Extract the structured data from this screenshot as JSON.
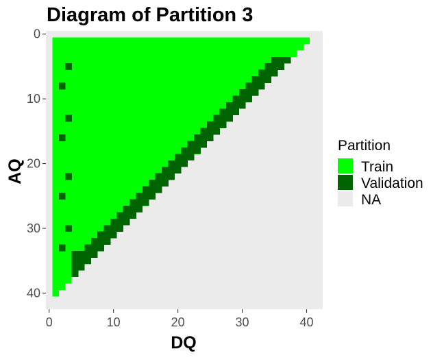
{
  "chart_data": {
    "type": "heatmap",
    "title": "Diagram of Partition 3",
    "xlabel": "DQ",
    "ylabel": "AQ",
    "xlim": [
      -0.5,
      42.5
    ],
    "ylim": [
      -0.5,
      42.5
    ],
    "y_reversed": true,
    "x_ticks": [
      0,
      10,
      20,
      30,
      40
    ],
    "y_ticks": [
      0,
      10,
      20,
      30,
      40
    ],
    "grid": false,
    "legend": {
      "title": "Partition",
      "placement": "right",
      "entries": [
        {
          "label": "Train",
          "color": "#00ff00"
        },
        {
          "label": "Validation",
          "color": "#006400"
        },
        {
          "label": "NA",
          "color": "#ebebeb"
        }
      ]
    },
    "panel_background": "#ebebeb",
    "categories": [
      "Train",
      "Validation"
    ],
    "train_region": "cells with DQ >= 1 and AQ >= 1 and DQ + AQ <= 41, excluding validation cells",
    "train_row_extent": [
      [
        1,
        40
      ],
      [
        1,
        39
      ],
      [
        1,
        38
      ],
      [
        1,
        37
      ],
      [
        1,
        36
      ],
      [
        1,
        35
      ],
      [
        1,
        34
      ],
      [
        1,
        33
      ],
      [
        1,
        32
      ],
      [
        1,
        31
      ],
      [
        1,
        30
      ],
      [
        1,
        29
      ],
      [
        1,
        28
      ],
      [
        1,
        27
      ],
      [
        1,
        26
      ],
      [
        1,
        25
      ],
      [
        1,
        24
      ],
      [
        1,
        23
      ],
      [
        1,
        22
      ],
      [
        1,
        21
      ],
      [
        1,
        20
      ],
      [
        1,
        19
      ],
      [
        1,
        18
      ],
      [
        1,
        17
      ],
      [
        1,
        16
      ],
      [
        1,
        15
      ],
      [
        1,
        14
      ],
      [
        1,
        13
      ],
      [
        1,
        12
      ],
      [
        1,
        11
      ],
      [
        1,
        10
      ],
      [
        1,
        9
      ],
      [
        1,
        8
      ],
      [
        1,
        7
      ],
      [
        1,
        6
      ],
      [
        1,
        5
      ],
      [
        1,
        4
      ],
      [
        1,
        3
      ],
      [
        1,
        2
      ],
      [
        1,
        1
      ]
    ],
    "validation_diagonal_band": [
      {
        "AQ": 4,
        "DQ": [
          35,
          37
        ]
      },
      {
        "AQ": 5,
        "DQ": [
          34,
          36
        ]
      },
      {
        "AQ": 6,
        "DQ": [
          33,
          35
        ]
      },
      {
        "AQ": 7,
        "DQ": [
          32,
          34
        ]
      },
      {
        "AQ": 8,
        "DQ": [
          31,
          33
        ]
      },
      {
        "AQ": 9,
        "DQ": [
          30,
          32
        ]
      },
      {
        "AQ": 10,
        "DQ": [
          29,
          31
        ]
      },
      {
        "AQ": 11,
        "DQ": [
          28,
          30
        ]
      },
      {
        "AQ": 12,
        "DQ": [
          27,
          29
        ]
      },
      {
        "AQ": 13,
        "DQ": [
          26,
          28
        ]
      },
      {
        "AQ": 14,
        "DQ": [
          25,
          27
        ]
      },
      {
        "AQ": 15,
        "DQ": [
          24,
          26
        ]
      },
      {
        "AQ": 16,
        "DQ": [
          23,
          25
        ]
      },
      {
        "AQ": 17,
        "DQ": [
          22,
          24
        ]
      },
      {
        "AQ": 18,
        "DQ": [
          21,
          23
        ]
      },
      {
        "AQ": 19,
        "DQ": [
          20,
          22
        ]
      },
      {
        "AQ": 20,
        "DQ": [
          19,
          21
        ]
      },
      {
        "AQ": 21,
        "DQ": [
          18,
          20
        ]
      },
      {
        "AQ": 22,
        "DQ": [
          17,
          19
        ]
      },
      {
        "AQ": 23,
        "DQ": [
          16,
          18
        ]
      },
      {
        "AQ": 24,
        "DQ": [
          15,
          17
        ]
      },
      {
        "AQ": 25,
        "DQ": [
          14,
          16
        ]
      },
      {
        "AQ": 26,
        "DQ": [
          13,
          15
        ]
      },
      {
        "AQ": 27,
        "DQ": [
          12,
          14
        ]
      },
      {
        "AQ": 28,
        "DQ": [
          11,
          13
        ]
      },
      {
        "AQ": 29,
        "DQ": [
          10,
          12
        ]
      },
      {
        "AQ": 30,
        "DQ": [
          9,
          11
        ]
      },
      {
        "AQ": 31,
        "DQ": [
          8,
          10
        ]
      },
      {
        "AQ": 32,
        "DQ": [
          7,
          9
        ]
      },
      {
        "AQ": 33,
        "DQ": [
          6,
          8
        ]
      },
      {
        "AQ": 34,
        "DQ": [
          4,
          7
        ]
      },
      {
        "AQ": 35,
        "DQ": [
          4,
          6
        ]
      },
      {
        "AQ": 36,
        "DQ": [
          4,
          5
        ]
      },
      {
        "AQ": 37,
        "DQ": [
          4,
          4
        ]
      }
    ],
    "validation_points": [
      {
        "DQ": 3,
        "AQ": 5
      },
      {
        "DQ": 2,
        "AQ": 8
      },
      {
        "DQ": 3,
        "AQ": 13
      },
      {
        "DQ": 2,
        "AQ": 16
      },
      {
        "DQ": 3,
        "AQ": 22
      },
      {
        "DQ": 2,
        "AQ": 25
      },
      {
        "DQ": 3,
        "AQ": 30
      },
      {
        "DQ": 2,
        "AQ": 33
      }
    ]
  }
}
